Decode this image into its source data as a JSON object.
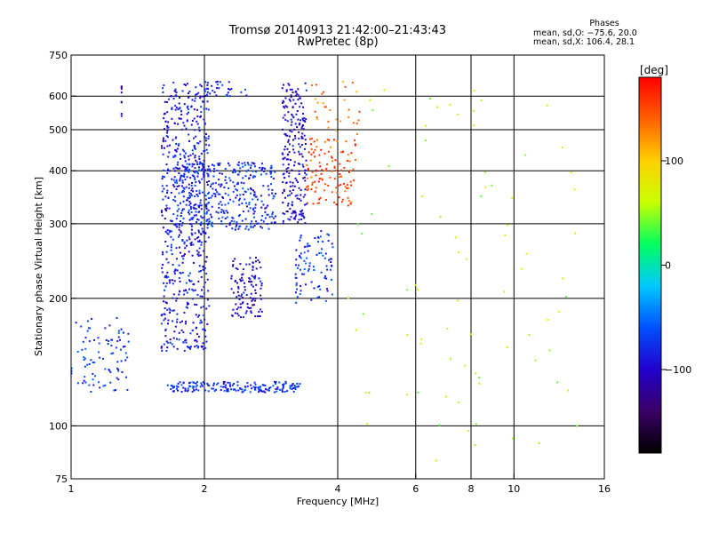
{
  "header": {
    "title": "Tromsø 20140913 21:42:00–21:43:43",
    "subtitle": "RwPretec (8p)"
  },
  "phase_info": {
    "title": "Phases",
    "line_o": "mean, sd,O: −75.6, 20.0",
    "line_x": "mean, sd,X: 106.4, 28.1"
  },
  "colorbar": {
    "unit": "[deg]",
    "tick_labels": [
      "100",
      "0",
      "−100"
    ],
    "tick_values": [
      100,
      0,
      -100
    ],
    "range": [
      -180,
      180
    ],
    "stops": [
      "#000000",
      "#3a0066",
      "#2200cc",
      "#0050ff",
      "#00c8ff",
      "#00ff60",
      "#c8ff00",
      "#ffd000",
      "#ff6000",
      "#ff0000"
    ]
  },
  "chart_data": {
    "type": "scatter",
    "xlabel": "Frequency [MHz]",
    "ylabel": "Stationary phase Virtual Height [km]",
    "x_scale": "log",
    "y_scale": "log",
    "xlim": [
      1,
      16
    ],
    "ylim": [
      75,
      750
    ],
    "x_ticks": [
      1,
      2,
      4,
      6,
      8,
      10,
      16
    ],
    "x_tick_labels": [
      "1",
      "2",
      "4",
      "6",
      "8",
      "10",
      "16"
    ],
    "x_gridlines": [
      2,
      4,
      6,
      8,
      10
    ],
    "y_ticks": [
      75,
      100,
      200,
      300,
      400,
      500,
      600,
      750
    ],
    "y_tick_labels": [
      "75",
      "100",
      "200",
      "300",
      "400",
      "500",
      "600",
      "750"
    ],
    "y_gridlines": [
      100,
      200,
      300,
      400,
      500,
      600
    ],
    "grid": true,
    "clusters": [
      {
        "x": [
          1.0,
          1.35
        ],
        "y": [
          120,
          180
        ],
        "phase_deg": -75,
        "count": 90
      },
      {
        "x": [
          1.6,
          2.05
        ],
        "y": [
          150,
          650
        ],
        "phase_deg": -88,
        "count": 600
      },
      {
        "x": [
          1.7,
          2.9
        ],
        "y": [
          290,
          420
        ],
        "phase_deg": -78,
        "count": 380
      },
      {
        "x": [
          1.65,
          3.3
        ],
        "y": [
          120,
          127
        ],
        "phase_deg": -78,
        "count": 180
      },
      {
        "x": [
          2.3,
          2.7
        ],
        "y": [
          180,
          250
        ],
        "phase_deg": -100,
        "count": 110
      },
      {
        "x": [
          3.0,
          3.4
        ],
        "y": [
          300,
          650
        ],
        "phase_deg": -100,
        "count": 220
      },
      {
        "x": [
          3.4,
          4.4
        ],
        "y": [
          330,
          480
        ],
        "phase_deg": 150,
        "count": 120
      },
      {
        "x": [
          3.2,
          3.9
        ],
        "y": [
          195,
          290
        ],
        "phase_deg": -75,
        "count": 90
      },
      {
        "x": [
          3.5,
          4.5
        ],
        "y": [
          480,
          650
        ],
        "phase_deg": 130,
        "count": 30
      },
      {
        "x": [
          2.0,
          2.5
        ],
        "y": [
          600,
          650
        ],
        "phase_deg": -80,
        "count": 30
      },
      {
        "x": [
          4.2,
          14.0
        ],
        "y": [
          80,
          650
        ],
        "phase_deg": 60,
        "count": 80
      },
      {
        "x": [
          1.3,
          1.3
        ],
        "y": [
          520,
          640
        ],
        "phase_deg": -120,
        "count": 8
      }
    ]
  }
}
